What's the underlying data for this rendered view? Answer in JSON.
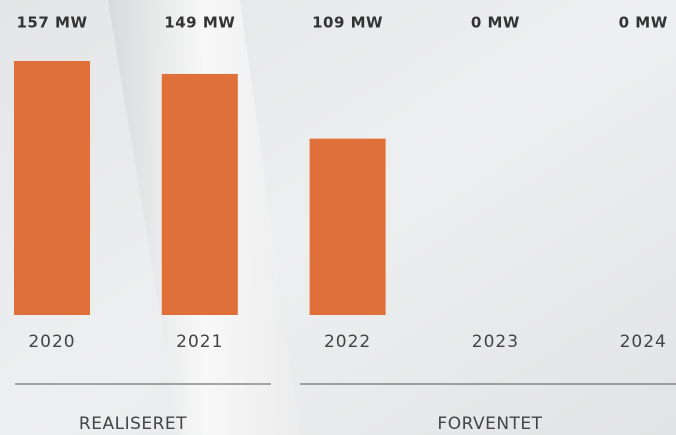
{
  "chart_data": {
    "type": "bar",
    "categories": [
      "2020",
      "2021",
      "2022",
      "2023",
      "2024"
    ],
    "values": [
      157,
      149,
      109,
      0,
      0
    ],
    "value_labels": [
      "157 MW",
      "149 MW",
      "109 MW",
      "0 MW",
      "0 MW"
    ],
    "color": "#e0703a",
    "groups": [
      "REALISERET",
      "FORVENTET"
    ]
  }
}
